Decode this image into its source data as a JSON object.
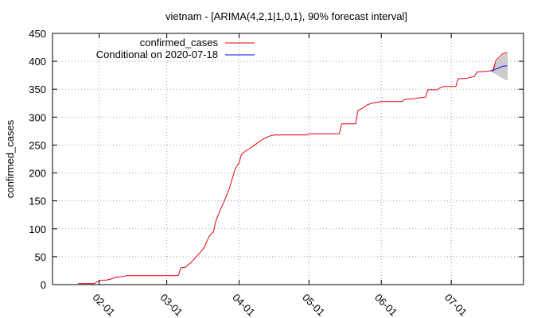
{
  "chart_data": {
    "type": "line",
    "title": "vietnam -  [ARIMA(4,2,1|1,0,1), 90% forecast interval]",
    "xlabel": "",
    "ylabel": "confirmed_cases",
    "ylim": [
      0,
      450
    ],
    "yticks": [
      "0",
      "50",
      "100",
      "150",
      "200",
      "250",
      "300",
      "350",
      "400",
      "450"
    ],
    "xlim": [
      "2020-01-12",
      "2020-08-01"
    ],
    "xticks": [
      {
        "date": "2020-02-01",
        "label": "02-01"
      },
      {
        "date": "2020-03-01",
        "label": "03-01"
      },
      {
        "date": "2020-04-01",
        "label": "04-01"
      },
      {
        "date": "2020-05-01",
        "label": "05-01"
      },
      {
        "date": "2020-06-01",
        "label": "06-01"
      },
      {
        "date": "2020-07-01",
        "label": "07-01"
      }
    ],
    "grid": true,
    "legend_position": "top-left",
    "series": [
      {
        "name": "confirmed_cases",
        "color": "#e0000e",
        "points": [
          [
            "2020-01-23",
            2
          ],
          [
            "2020-01-30",
            2
          ],
          [
            "2020-01-31",
            5
          ],
          [
            "2020-02-01",
            6
          ],
          [
            "2020-02-02",
            8
          ],
          [
            "2020-02-04",
            8
          ],
          [
            "2020-02-06",
            10
          ],
          [
            "2020-02-08",
            13
          ],
          [
            "2020-02-10",
            14
          ],
          [
            "2020-02-13",
            16
          ],
          [
            "2020-03-05",
            16
          ],
          [
            "2020-03-06",
            17
          ],
          [
            "2020-03-07",
            30
          ],
          [
            "2020-03-09",
            31
          ],
          [
            "2020-03-10",
            35
          ],
          [
            "2020-03-11",
            38
          ],
          [
            "2020-03-13",
            47
          ],
          [
            "2020-03-15",
            56
          ],
          [
            "2020-03-17",
            66
          ],
          [
            "2020-03-19",
            85
          ],
          [
            "2020-03-20",
            91
          ],
          [
            "2020-03-21",
            94
          ],
          [
            "2020-03-22",
            113
          ],
          [
            "2020-03-24",
            134
          ],
          [
            "2020-03-26",
            153
          ],
          [
            "2020-03-28",
            174
          ],
          [
            "2020-03-30",
            203
          ],
          [
            "2020-03-31",
            212
          ],
          [
            "2020-04-01",
            218
          ],
          [
            "2020-04-02",
            233
          ],
          [
            "2020-04-04",
            240
          ],
          [
            "2020-04-06",
            245
          ],
          [
            "2020-04-08",
            251
          ],
          [
            "2020-04-10",
            257
          ],
          [
            "2020-04-12",
            262
          ],
          [
            "2020-04-14",
            266
          ],
          [
            "2020-04-16",
            268
          ],
          [
            "2020-04-30",
            268
          ],
          [
            "2020-05-01",
            270
          ],
          [
            "2020-05-14",
            270
          ],
          [
            "2020-05-15",
            288
          ],
          [
            "2020-05-21",
            288
          ],
          [
            "2020-05-22",
            312
          ],
          [
            "2020-05-24",
            316
          ],
          [
            "2020-05-26",
            322
          ],
          [
            "2020-05-28",
            325
          ],
          [
            "2020-06-01",
            328
          ],
          [
            "2020-06-10",
            328
          ],
          [
            "2020-06-11",
            332
          ],
          [
            "2020-06-15",
            333
          ],
          [
            "2020-06-16",
            334
          ],
          [
            "2020-06-20",
            336
          ],
          [
            "2020-06-21",
            349
          ],
          [
            "2020-06-25",
            349
          ],
          [
            "2020-06-26",
            352
          ],
          [
            "2020-06-28",
            355
          ],
          [
            "2020-07-01",
            355
          ],
          [
            "2020-07-03",
            355
          ],
          [
            "2020-07-04",
            369
          ],
          [
            "2020-07-06",
            369
          ],
          [
            "2020-07-08",
            370
          ],
          [
            "2020-07-10",
            372
          ],
          [
            "2020-07-11",
            373
          ],
          [
            "2020-07-12",
            381
          ],
          [
            "2020-07-16",
            382
          ],
          [
            "2020-07-18",
            383
          ],
          [
            "2020-07-19",
            383
          ],
          [
            "2020-07-20",
            400
          ],
          [
            "2020-07-21",
            405
          ],
          [
            "2020-07-22",
            409
          ],
          [
            "2020-07-23",
            413
          ],
          [
            "2020-07-25",
            416
          ]
        ]
      },
      {
        "name": "Conditional on 2020-07-18",
        "color": "#0000ff",
        "points": [
          [
            "2020-07-18",
            383
          ],
          [
            "2020-07-19",
            384
          ],
          [
            "2020-07-20",
            386
          ],
          [
            "2020-07-21",
            387
          ],
          [
            "2020-07-22",
            389
          ],
          [
            "2020-07-23",
            391
          ],
          [
            "2020-07-25",
            392
          ]
        ]
      }
    ],
    "forecast_interval": {
      "level": "90%",
      "color": "#cccccc",
      "points": [
        [
          "2020-07-18",
          383,
          383
        ],
        [
          "2020-07-19",
          380,
          390
        ],
        [
          "2020-07-20",
          378,
          396
        ],
        [
          "2020-07-21",
          376,
          401
        ],
        [
          "2020-07-22",
          373,
          405
        ],
        [
          "2020-07-23",
          371,
          409
        ],
        [
          "2020-07-25",
          366,
          414
        ]
      ]
    }
  }
}
